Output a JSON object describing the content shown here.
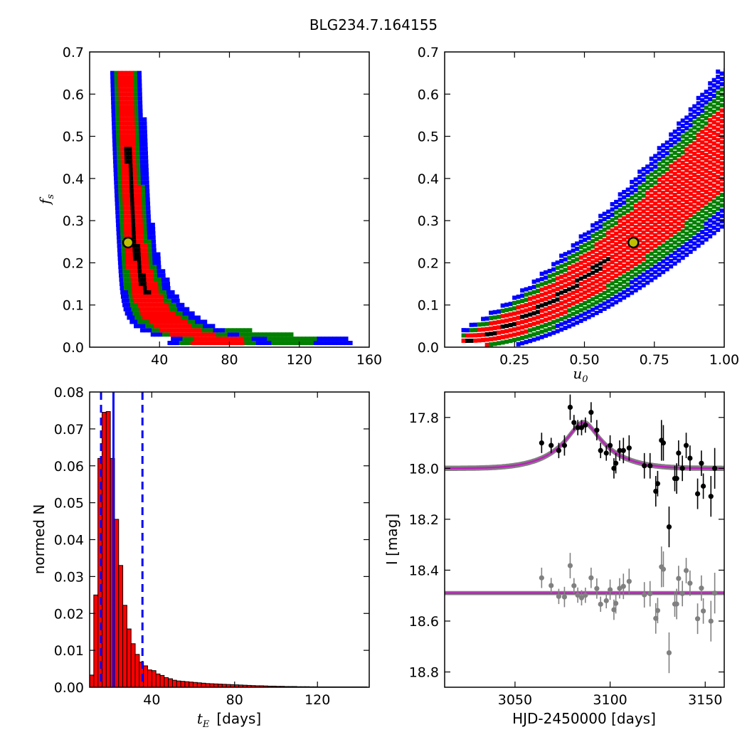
{
  "title": "BLG234.7.164155",
  "colors": {
    "blue": "#0000ff",
    "green": "#008000",
    "red": "#ff0000",
    "black": "#000000",
    "marker_fill": "#bfbf00",
    "model_line": "#bf1fbf",
    "grey": "#808080"
  },
  "chart_data": [
    {
      "type": "heatmap",
      "panel": "fs-vs-tE",
      "xlabel": "",
      "ylabel": "f_s",
      "ylabel_main": "f",
      "ylabel_sub": "s",
      "xlim": [
        0,
        160
      ],
      "ylim": [
        0.0,
        0.7
      ],
      "xticks": [
        {
          "v": 40,
          "t": "40"
        },
        {
          "v": 80,
          "t": "80"
        },
        {
          "v": 120,
          "t": "120"
        },
        {
          "v": 160,
          "t": "160"
        }
      ],
      "yticks": [
        {
          "v": 0.0,
          "t": "0.0"
        },
        {
          "v": 0.1,
          "t": "0.1"
        },
        {
          "v": 0.2,
          "t": "0.2"
        },
        {
          "v": 0.3,
          "t": "0.3"
        },
        {
          "v": 0.4,
          "t": "0.4"
        },
        {
          "v": 0.5,
          "t": "0.5"
        },
        {
          "v": 0.6,
          "t": "0.6"
        },
        {
          "v": 0.7,
          "t": "0.7"
        }
      ],
      "contour_levels": [
        "blue",
        "green",
        "red",
        "black"
      ],
      "best_fit": {
        "x": 22,
        "y": 0.248
      }
    },
    {
      "type": "heatmap",
      "panel": "fs-vs-u0",
      "xlabel": "u_0",
      "xlabel_main": "u",
      "xlabel_sub": "0",
      "ylabel": "",
      "xlim": [
        0.0,
        1.0
      ],
      "ylim": [
        0.0,
        0.7
      ],
      "xticks": [
        {
          "v": 0.25,
          "t": "0.25"
        },
        {
          "v": 0.5,
          "t": "0.50"
        },
        {
          "v": 0.75,
          "t": "0.75"
        },
        {
          "v": 1.0,
          "t": "1.00"
        }
      ],
      "yticks": [
        {
          "v": 0.0,
          "t": "0.0"
        },
        {
          "v": 0.1,
          "t": "0.1"
        },
        {
          "v": 0.2,
          "t": "0.2"
        },
        {
          "v": 0.3,
          "t": "0.3"
        },
        {
          "v": 0.4,
          "t": "0.4"
        },
        {
          "v": 0.5,
          "t": "0.5"
        },
        {
          "v": 0.6,
          "t": "0.6"
        },
        {
          "v": 0.7,
          "t": "0.7"
        }
      ],
      "contour_levels": [
        "blue",
        "green",
        "red",
        "black"
      ],
      "best_fit": {
        "x": 0.675,
        "y": 0.248
      }
    },
    {
      "type": "bar",
      "panel": "tE-histogram",
      "xlabel": "t_E  [days]",
      "xlabel_main": "t",
      "xlabel_sub": "E",
      "xlabel_rest": "[days]",
      "ylabel": "normed N",
      "xlim": [
        10,
        145
      ],
      "ylim": [
        0.0,
        0.08
      ],
      "xticks": [
        {
          "v": 40,
          "t": "40"
        },
        {
          "v": 80,
          "t": "80"
        },
        {
          "v": 120,
          "t": "120"
        }
      ],
      "yticks": [
        {
          "v": 0.0,
          "t": "0.00"
        },
        {
          "v": 0.01,
          "t": "0.01"
        },
        {
          "v": 0.02,
          "t": "0.02"
        },
        {
          "v": 0.03,
          "t": "0.03"
        },
        {
          "v": 0.04,
          "t": "0.04"
        },
        {
          "v": 0.05,
          "t": "0.05"
        },
        {
          "v": 0.06,
          "t": "0.06"
        },
        {
          "v": 0.07,
          "t": "0.07"
        },
        {
          "v": 0.08,
          "t": "0.08"
        }
      ],
      "bin_width": 2,
      "bin_start": 10,
      "values": [
        0.0033,
        0.025,
        0.062,
        0.0745,
        0.0747,
        0.062,
        0.0455,
        0.033,
        0.0222,
        0.0158,
        0.0118,
        0.0089,
        0.0068,
        0.0058,
        0.0047,
        0.0045,
        0.0036,
        0.0032,
        0.0026,
        0.0023,
        0.0019,
        0.0017,
        0.0016,
        0.0015,
        0.0014,
        0.0013,
        0.0012,
        0.0011,
        0.001,
        0.00095,
        0.0009,
        0.00085,
        0.0008,
        0.00075,
        0.0007,
        0.00065,
        0.0006,
        0.00055,
        0.0005,
        0.00045,
        0.0004,
        0.0004,
        0.00035,
        0.0003,
        0.0003,
        0.00025,
        0.00025,
        0.0002,
        0.0002,
        0.0002,
        0.00015,
        0.00015,
        0.00015,
        0.00012,
        0.00012,
        0.0001,
        0.0001,
        0.0001,
        0.0001,
        0.0001,
        0.0001,
        0.0001,
        0.0001,
        0.0001,
        0.0001,
        0.0001,
        0.0001
      ],
      "solid_line": 21.5,
      "dashed_lines": [
        15.5,
        35.5
      ]
    },
    {
      "type": "scatter",
      "panel": "light-curve",
      "xlabel": "HJD-2450000 [days]",
      "ylabel": "I [mag]",
      "xlim": [
        3013,
        3160
      ],
      "ylim": [
        18.86,
        17.7
      ],
      "xticks": [
        {
          "v": 3050,
          "t": "3050"
        },
        {
          "v": 3100,
          "t": "3100"
        },
        {
          "v": 3150,
          "t": "3150"
        }
      ],
      "yticks": [
        {
          "v": 17.8,
          "t": "17.8"
        },
        {
          "v": 18.0,
          "t": "18.0"
        },
        {
          "v": 18.2,
          "t": "18.2"
        },
        {
          "v": 18.4,
          "t": "18.4"
        },
        {
          "v": 18.6,
          "t": "18.6"
        },
        {
          "v": 18.8,
          "t": "18.8"
        }
      ],
      "model": {
        "baseline": 18.0,
        "t0": 3086,
        "peak_depth": 0.18,
        "width": 10
      },
      "residual_offset": 18.49,
      "points": [
        {
          "x": 3064,
          "y": 17.9,
          "e": 0.04
        },
        {
          "x": 3069,
          "y": 17.91,
          "e": 0.03
        },
        {
          "x": 3073,
          "y": 17.93,
          "e": 0.03
        },
        {
          "x": 3076,
          "y": 17.91,
          "e": 0.04
        },
        {
          "x": 3079,
          "y": 17.76,
          "e": 0.05
        },
        {
          "x": 3081,
          "y": 17.82,
          "e": 0.03
        },
        {
          "x": 3083,
          "y": 17.84,
          "e": 0.03
        },
        {
          "x": 3085,
          "y": 17.84,
          "e": 0.03
        },
        {
          "x": 3087,
          "y": 17.83,
          "e": 0.03
        },
        {
          "x": 3090,
          "y": 17.78,
          "e": 0.04
        },
        {
          "x": 3093,
          "y": 17.85,
          "e": 0.04
        },
        {
          "x": 3095,
          "y": 17.93,
          "e": 0.03
        },
        {
          "x": 3098,
          "y": 17.94,
          "e": 0.03
        },
        {
          "x": 3100,
          "y": 17.91,
          "e": 0.04
        },
        {
          "x": 3102,
          "y": 18.0,
          "e": 0.04
        },
        {
          "x": 3103,
          "y": 17.98,
          "e": 0.04
        },
        {
          "x": 3105,
          "y": 17.93,
          "e": 0.04
        },
        {
          "x": 3107,
          "y": 17.93,
          "e": 0.05
        },
        {
          "x": 3110,
          "y": 17.92,
          "e": 0.05
        },
        {
          "x": 3118,
          "y": 17.99,
          "e": 0.05
        },
        {
          "x": 3121,
          "y": 17.99,
          "e": 0.05
        },
        {
          "x": 3124,
          "y": 18.09,
          "e": 0.06
        },
        {
          "x": 3125,
          "y": 18.06,
          "e": 0.05
        },
        {
          "x": 3127,
          "y": 17.89,
          "e": 0.08
        },
        {
          "x": 3128,
          "y": 17.9,
          "e": 0.07
        },
        {
          "x": 3131,
          "y": 18.23,
          "e": 0.08
        },
        {
          "x": 3134,
          "y": 18.04,
          "e": 0.05
        },
        {
          "x": 3135,
          "y": 18.04,
          "e": 0.06
        },
        {
          "x": 3136,
          "y": 17.94,
          "e": 0.05
        },
        {
          "x": 3138,
          "y": 18.0,
          "e": 0.05
        },
        {
          "x": 3140,
          "y": 17.91,
          "e": 0.05
        },
        {
          "x": 3142,
          "y": 17.96,
          "e": 0.05
        },
        {
          "x": 3146,
          "y": 18.1,
          "e": 0.06
        },
        {
          "x": 3148,
          "y": 17.98,
          "e": 0.05
        },
        {
          "x": 3149,
          "y": 18.07,
          "e": 0.05
        },
        {
          "x": 3153,
          "y": 18.11,
          "e": 0.08
        },
        {
          "x": 3155,
          "y": 18.0,
          "e": 0.08
        }
      ]
    }
  ]
}
